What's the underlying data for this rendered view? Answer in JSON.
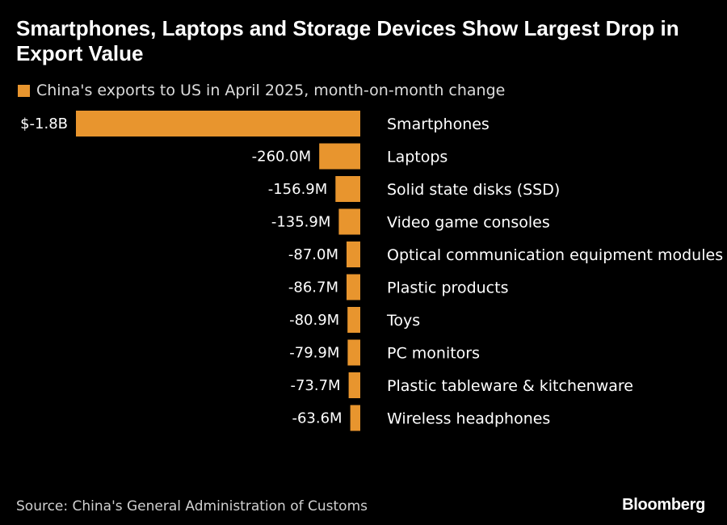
{
  "title": "Smartphones, Laptops and Storage Devices Show Largest Drop in Export Value",
  "legend": {
    "label": "China's exports to US in April 2025, month-on-month change"
  },
  "colors": {
    "bar": "#E8952E",
    "background": "#000000",
    "text": "#FFFFFF"
  },
  "chart_data": {
    "type": "bar",
    "orientation": "horizontal",
    "categories": [
      "Smartphones",
      "Laptops",
      "Solid state disks (SSD)",
      "Video game consoles",
      "Optical communication equipment modules",
      "Plastic products",
      "Toys",
      "PC monitors",
      "Plastic tableware & kitchenware",
      "Wireless headphones"
    ],
    "values": [
      -1800,
      -260.0,
      -156.9,
      -135.9,
      -87.0,
      -86.7,
      -80.9,
      -79.9,
      -73.7,
      -63.6
    ],
    "value_unit": "million USD",
    "value_labels": [
      "$-1.8B",
      "-260.0M",
      "-156.9M",
      "-135.9M",
      "-87.0M",
      "-86.7M",
      "-80.9M",
      "-79.9M",
      "-73.7M",
      "-63.6M"
    ],
    "series": [
      {
        "name": "China's exports to US in April 2025, month-on-month change"
      }
    ],
    "legend_position": "top-left",
    "grid": false
  },
  "source": "Source: China's General Administration of Customs",
  "brand": "Bloomberg"
}
